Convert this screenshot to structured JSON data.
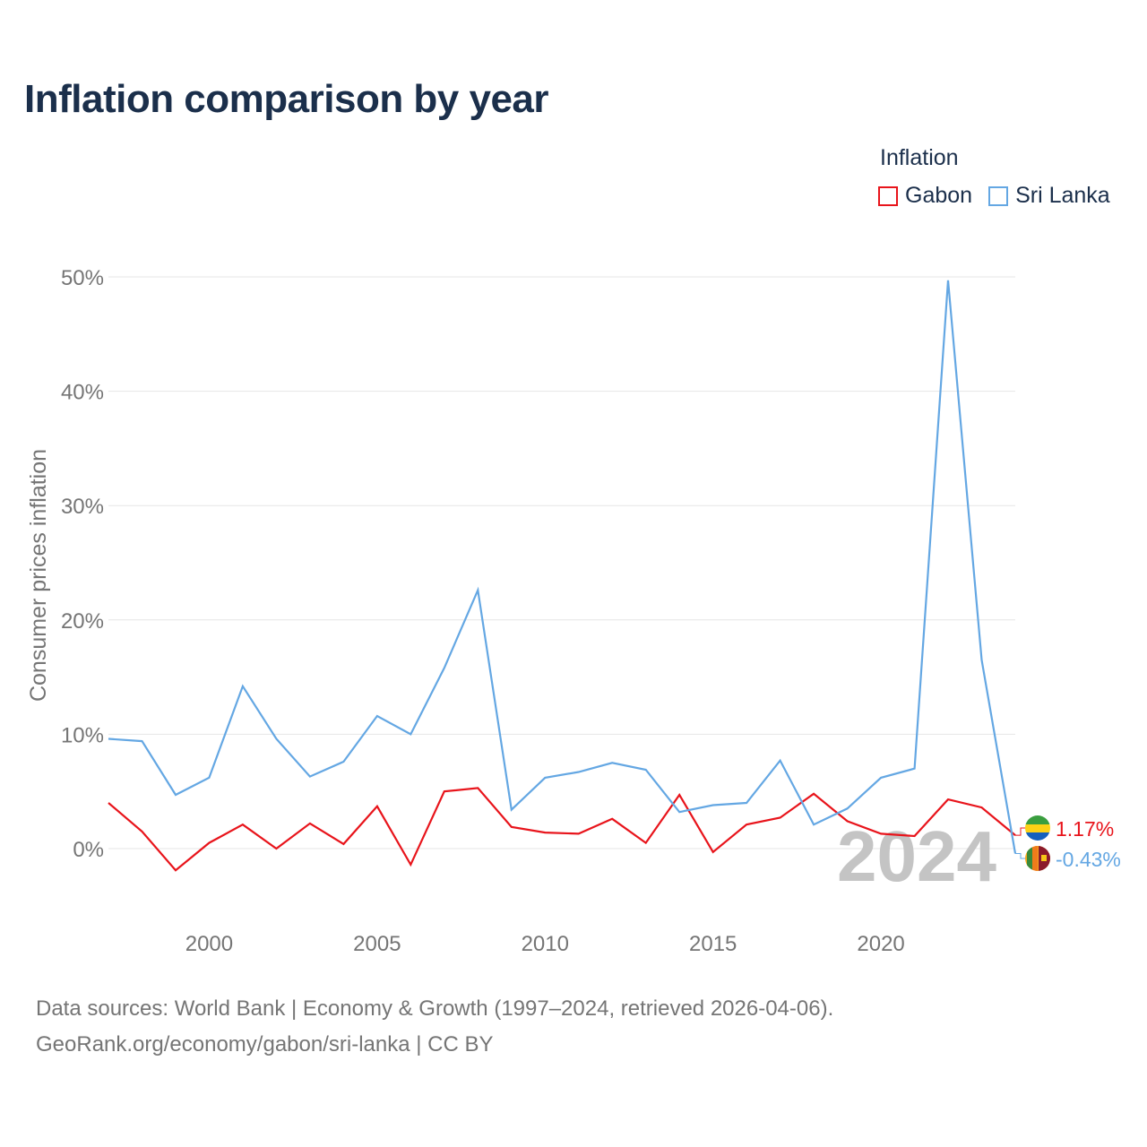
{
  "title": "Inflation comparison by year",
  "legend": {
    "title": "Inflation",
    "items": [
      {
        "label": "Gabon",
        "color": "#e8141b"
      },
      {
        "label": "Sri Lanka",
        "color": "#64a7e3"
      }
    ]
  },
  "chart_data": {
    "type": "line",
    "title": "Inflation comparison by year",
    "xlabel": "",
    "ylabel": "Consumer prices inflation",
    "xlim": [
      1997,
      2024
    ],
    "ylim": [
      -5,
      50
    ],
    "x_ticks": [
      2000,
      2005,
      2010,
      2015,
      2020
    ],
    "y_ticks": [
      0,
      10,
      20,
      30,
      40,
      50
    ],
    "y_tick_labels": [
      "0%",
      "10%",
      "20%",
      "30%",
      "40%",
      "50%"
    ],
    "x_tick_labels": [
      "2000",
      "2005",
      "2010",
      "2015",
      "2020"
    ],
    "grid": true,
    "legend_position": "top-right",
    "x": [
      1997,
      1998,
      1999,
      2000,
      2001,
      2002,
      2003,
      2004,
      2005,
      2006,
      2007,
      2008,
      2009,
      2010,
      2011,
      2012,
      2013,
      2014,
      2015,
      2016,
      2017,
      2018,
      2019,
      2020,
      2021,
      2022,
      2023,
      2024
    ],
    "series": [
      {
        "name": "Gabon",
        "color": "#e8141b",
        "values": [
          4.0,
          1.5,
          -1.9,
          0.5,
          2.1,
          0.0,
          2.2,
          0.4,
          3.7,
          -1.4,
          5.0,
          5.3,
          1.9,
          1.4,
          1.3,
          2.6,
          0.5,
          4.7,
          -0.3,
          2.1,
          2.7,
          4.8,
          2.4,
          1.3,
          1.1,
          4.3,
          3.6,
          1.17
        ],
        "end_label": "1.17%"
      },
      {
        "name": "Sri Lanka",
        "color": "#64a7e3",
        "values": [
          9.6,
          9.4,
          4.7,
          6.2,
          14.2,
          9.6,
          6.3,
          7.6,
          11.6,
          10.0,
          15.8,
          22.6,
          3.4,
          6.2,
          6.7,
          7.5,
          6.9,
          3.2,
          3.8,
          4.0,
          7.7,
          2.1,
          3.5,
          6.2,
          7.0,
          49.7,
          16.5,
          -0.43
        ],
        "end_label": "-0.43%"
      }
    ],
    "year_watermark": "2024"
  },
  "footer": {
    "line1": "Data sources: World Bank | Economy & Growth (1997–2024, retrieved 2026-04-06).",
    "line2": "GeoRank.org/economy/gabon/sri-lanka | CC BY"
  }
}
